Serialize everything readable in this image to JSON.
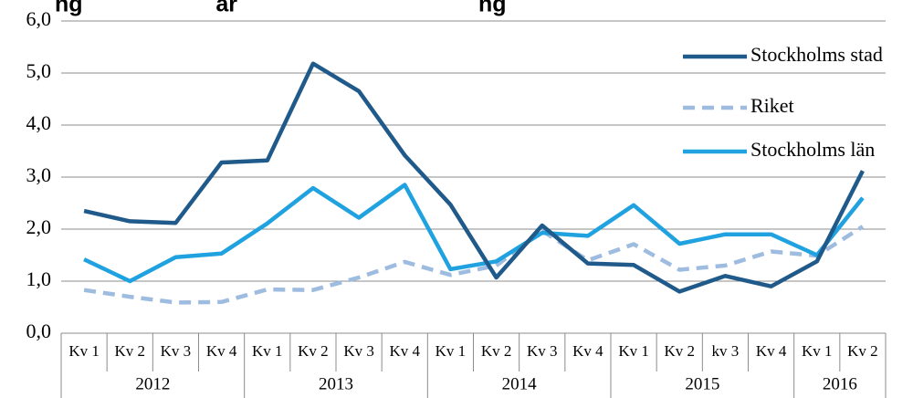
{
  "chart_data": {
    "type": "line",
    "title_fragment": "ng                     ar                                      ng",
    "x": [
      "Kv 1",
      "Kv 2",
      "Kv 3",
      "Kv 4",
      "Kv 1",
      "Kv 2",
      "Kv 3",
      "Kv 4",
      "Kv 1",
      "Kv 2",
      "Kv 3",
      "Kv 4",
      "Kv 1",
      "Kv 2",
      "kv 3",
      "Kv 4",
      "Kv 1",
      "Kv 2"
    ],
    "years": [
      {
        "label": "2012",
        "span": 4
      },
      {
        "label": "2013",
        "span": 4
      },
      {
        "label": "2014",
        "span": 4
      },
      {
        "label": "2015",
        "span": 4
      },
      {
        "label": "2016",
        "span": 2
      }
    ],
    "y_ticks": [
      "0,0",
      "1,0",
      "2,0",
      "3,0",
      "4,0",
      "5,0",
      "6,0"
    ],
    "ylim": [
      0,
      6
    ],
    "grid": true,
    "legend_position": "top-right",
    "series": [
      {
        "name": "Stockholms stad",
        "color": "#1f5a8a",
        "dashed": false,
        "values": [
          2.35,
          2.15,
          2.12,
          3.28,
          3.32,
          5.18,
          4.65,
          3.42,
          2.47,
          1.07,
          2.07,
          1.34,
          1.31,
          0.8,
          1.1,
          0.9,
          1.38,
          3.12
        ]
      },
      {
        "name": "Riket",
        "color": "#9ebbe0",
        "dashed": true,
        "values": [
          0.83,
          0.7,
          0.59,
          0.6,
          0.84,
          0.83,
          1.07,
          1.37,
          1.12,
          1.3,
          1.97,
          1.4,
          1.71,
          1.22,
          1.3,
          1.57,
          1.49,
          2.05
        ]
      },
      {
        "name": "Stockholms län",
        "color": "#1fa2df",
        "dashed": false,
        "values": [
          1.42,
          1.0,
          1.46,
          1.53,
          2.11,
          2.79,
          2.22,
          2.85,
          1.23,
          1.38,
          1.93,
          1.87,
          2.46,
          1.72,
          1.9,
          1.9,
          1.5,
          2.6
        ]
      }
    ]
  }
}
